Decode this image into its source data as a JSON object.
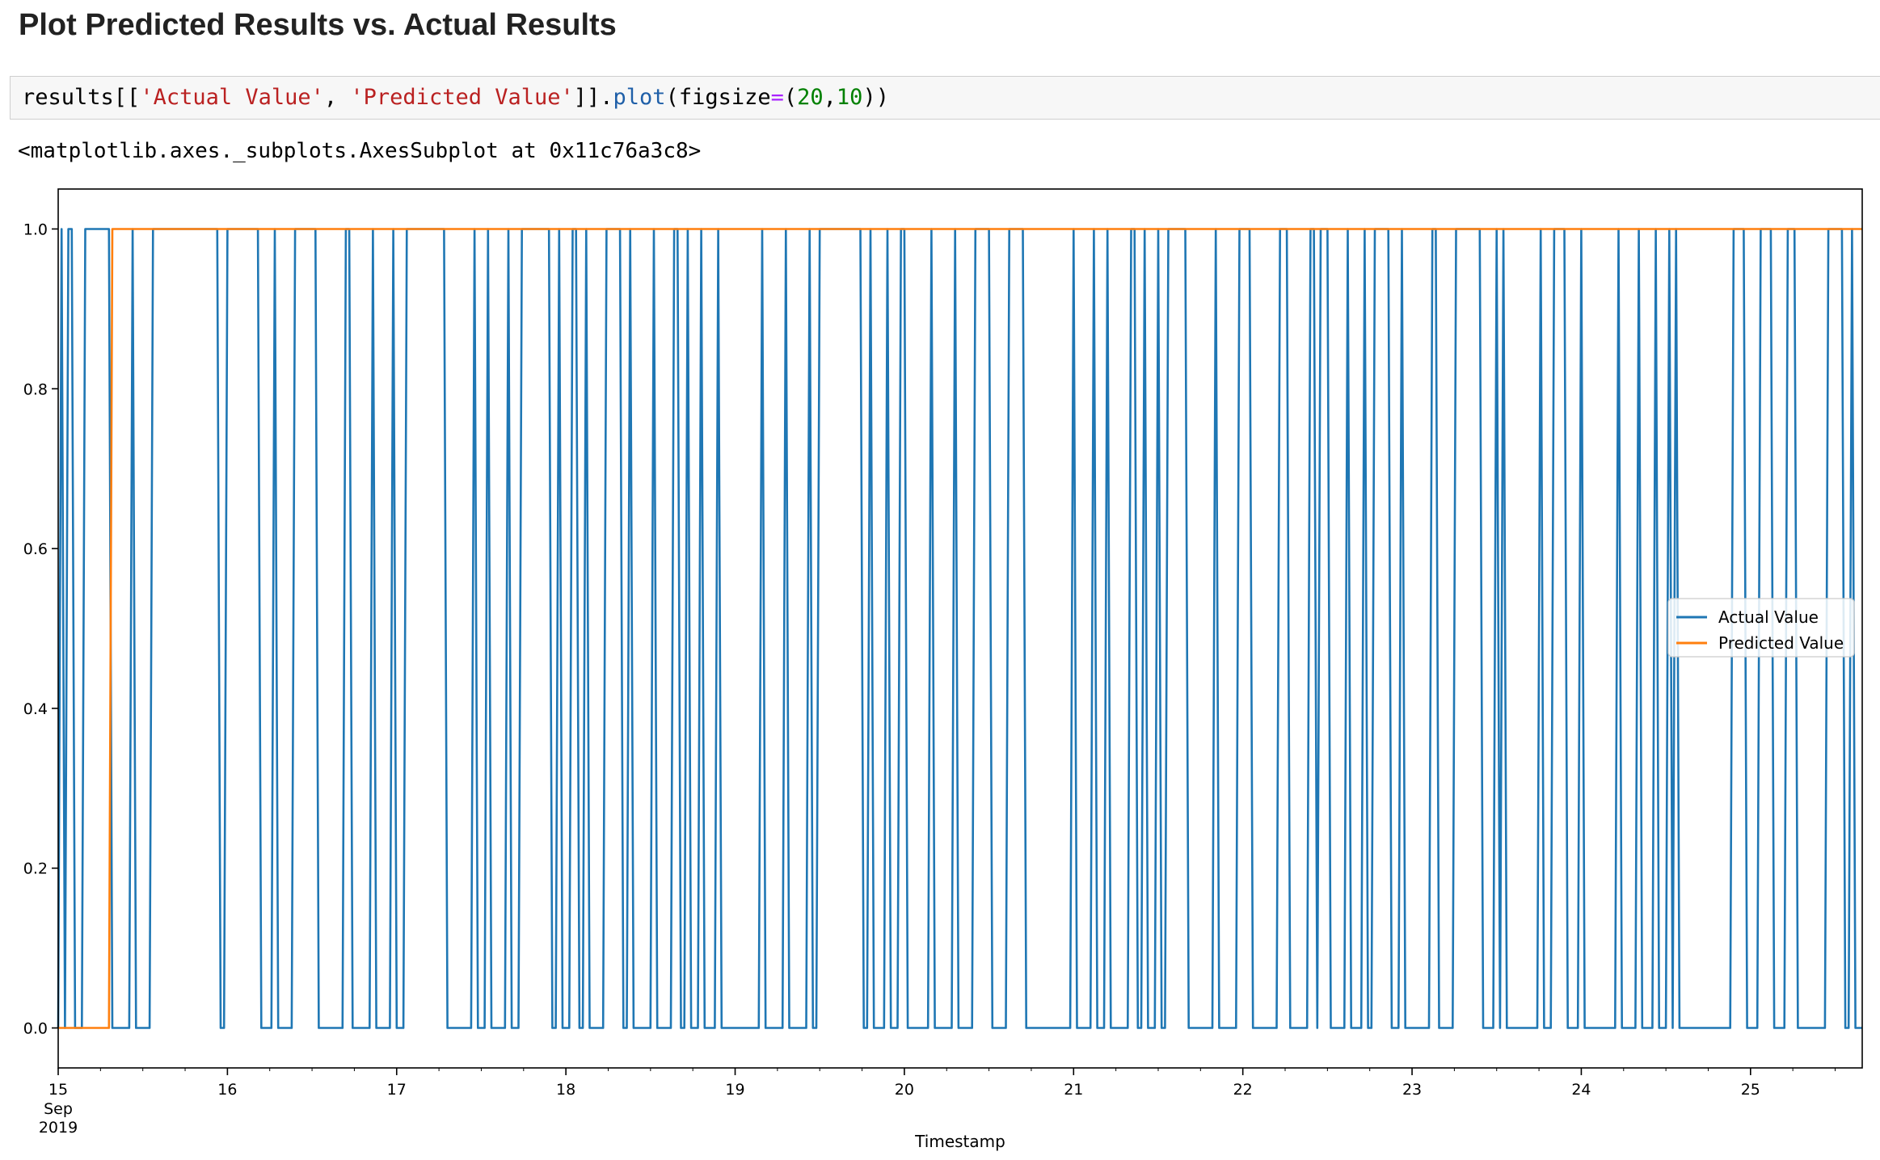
{
  "heading": "Plot Predicted Results vs. Actual Results",
  "code": {
    "prefix": "results[[",
    "str1": "'Actual Value'",
    "sep": ", ",
    "str2": "'Predicted Value'",
    "mid": "]].",
    "method": "plot",
    "open": "(figsize",
    "eq": "=",
    "paren": "(",
    "num1": "20",
    "comma": ",",
    "num2": "10",
    "close": "))"
  },
  "output_text": "<matplotlib.axes._subplots.AxesSubplot at 0x11c76a3c8>",
  "chart_data": {
    "type": "line",
    "title": "",
    "xlabel": "Timestamp",
    "ylabel": "",
    "xlim": [
      15.0,
      25.66
    ],
    "ylim": [
      -0.05,
      1.05
    ],
    "x_ticks": [
      {
        "value": 15,
        "label": "15",
        "sublabels": [
          "Sep",
          "2019"
        ]
      },
      {
        "value": 16,
        "label": "16"
      },
      {
        "value": 17,
        "label": "17"
      },
      {
        "value": 18,
        "label": "18"
      },
      {
        "value": 19,
        "label": "19"
      },
      {
        "value": 20,
        "label": "20"
      },
      {
        "value": 21,
        "label": "21"
      },
      {
        "value": 22,
        "label": "22"
      },
      {
        "value": 23,
        "label": "23"
      },
      {
        "value": 24,
        "label": "24"
      },
      {
        "value": 25,
        "label": "25"
      }
    ],
    "y_ticks": [
      {
        "value": 0.0,
        "label": "0.0"
      },
      {
        "value": 0.2,
        "label": "0.2"
      },
      {
        "value": 0.4,
        "label": "0.4"
      },
      {
        "value": 0.6,
        "label": "0.6"
      },
      {
        "value": 0.8,
        "label": "0.8"
      },
      {
        "value": 1.0,
        "label": "1.0"
      }
    ],
    "grid": false,
    "legend_position": "center-right",
    "series": [
      {
        "name": "Actual Value",
        "color": "#1f77b4",
        "x_start": 15.0,
        "x_step": 0.02,
        "values": [
          0,
          1,
          0,
          1,
          1,
          0,
          0,
          0,
          1,
          1,
          1,
          1,
          1,
          1,
          1,
          1,
          0,
          0,
          0,
          0,
          0,
          0,
          1,
          0,
          0,
          0,
          0,
          0,
          1,
          1,
          1,
          1,
          1,
          1,
          1,
          1,
          1,
          1,
          1,
          1,
          1,
          1,
          1,
          1,
          1,
          1,
          1,
          1,
          0,
          0,
          1,
          1,
          1,
          1,
          1,
          1,
          1,
          1,
          1,
          1,
          0,
          0,
          0,
          0,
          1,
          0,
          0,
          0,
          0,
          0,
          1,
          1,
          1,
          1,
          1,
          1,
          1,
          0,
          0,
          0,
          0,
          0,
          0,
          0,
          0,
          1,
          1,
          0,
          0,
          0,
          0,
          0,
          0,
          1,
          0,
          0,
          0,
          0,
          0,
          1,
          0,
          0,
          0,
          1,
          1,
          1,
          1,
          1,
          1,
          1,
          1,
          1,
          1,
          1,
          1,
          0,
          0,
          0,
          0,
          0,
          0,
          0,
          0,
          1,
          0,
          0,
          0,
          1,
          0,
          0,
          0,
          0,
          0,
          1,
          0,
          0,
          0,
          1,
          1,
          1,
          1,
          1,
          1,
          1,
          1,
          1,
          0,
          0,
          1,
          0,
          0,
          0,
          1,
          1,
          0,
          0,
          1,
          0,
          0,
          0,
          0,
          0,
          1,
          1,
          1,
          1,
          1,
          0,
          0,
          1,
          0,
          0,
          0,
          0,
          0,
          0,
          1,
          0,
          0,
          0,
          0,
          0,
          1,
          1,
          0,
          0,
          1,
          0,
          0,
          0,
          1,
          0,
          0,
          0,
          0,
          1,
          0,
          0,
          0,
          0,
          0,
          0,
          0,
          0,
          0,
          0,
          0,
          0,
          1,
          0,
          0,
          0,
          0,
          0,
          0,
          1,
          0,
          0,
          0,
          0,
          0,
          0,
          1,
          0,
          0,
          1,
          1,
          1,
          1,
          1,
          1,
          1,
          1,
          1,
          1,
          1,
          1,
          1,
          0,
          0,
          1,
          0,
          0,
          0,
          0,
          1,
          0,
          0,
          0,
          1,
          1,
          0,
          0,
          0,
          0,
          0,
          0,
          0,
          1,
          0,
          0,
          0,
          0,
          0,
          0,
          1,
          0,
          0,
          0,
          0,
          0,
          1,
          1,
          1,
          1,
          1,
          0,
          0,
          0,
          0,
          0,
          1,
          1,
          1,
          1,
          1,
          0,
          0,
          0,
          0,
          0,
          0,
          0,
          0,
          0,
          0,
          0,
          0,
          0,
          0,
          1,
          0,
          0,
          0,
          0,
          0,
          1,
          0,
          0,
          0,
          1,
          0,
          0,
          0,
          0,
          0,
          0,
          1,
          1,
          0,
          0,
          1,
          0,
          0,
          0,
          1,
          0,
          0,
          1,
          1,
          1,
          1,
          1,
          1,
          0,
          0,
          0,
          0,
          0,
          0,
          0,
          0,
          1,
          0,
          0,
          0,
          0,
          0,
          0,
          1,
          1,
          1,
          1,
          0,
          0,
          0,
          0,
          0,
          0,
          0,
          0,
          1,
          1,
          1,
          0,
          0,
          0,
          0,
          0,
          0,
          1,
          1,
          0,
          1,
          1,
          1,
          0,
          0,
          0,
          0,
          0,
          1,
          0,
          0,
          0,
          0,
          1,
          0,
          0,
          1,
          1,
          1,
          1,
          1,
          0,
          0,
          0,
          1,
          0,
          0,
          0,
          0,
          0,
          0,
          0,
          0,
          1,
          1,
          0,
          0,
          0,
          0,
          0,
          1,
          1,
          1,
          1,
          1,
          1,
          1,
          1,
          0,
          0,
          0,
          0,
          1,
          0,
          1,
          0,
          0,
          0,
          0,
          0,
          0,
          0,
          0,
          0,
          0,
          1,
          0,
          0,
          0,
          1,
          1,
          1,
          1,
          0,
          0,
          0,
          0,
          1,
          0,
          0,
          0,
          0,
          0,
          0,
          0,
          0,
          0,
          0,
          1,
          0,
          0,
          0,
          0,
          0,
          1,
          0,
          0,
          0,
          0,
          1,
          0,
          0,
          0,
          1,
          0,
          1,
          0,
          0,
          0,
          0,
          0,
          0,
          0,
          0,
          0,
          0,
          0,
          0,
          0,
          0,
          0,
          0,
          1,
          1,
          1,
          1,
          0,
          0,
          0,
          0,
          1,
          1,
          1,
          1,
          0,
          0,
          0,
          0,
          1,
          1,
          1,
          0,
          0,
          0,
          0,
          0,
          0,
          0,
          0,
          0,
          1,
          1,
          1,
          1,
          1,
          0,
          0,
          1,
          0,
          0,
          0,
          0,
          0,
          0,
          0,
          0,
          1,
          0,
          0,
          1,
          1,
          1,
          1,
          1,
          1,
          1,
          1,
          1,
          1,
          1,
          1,
          1
        ]
      },
      {
        "name": "Predicted Value",
        "color": "#ff7f0e",
        "x_start": 15.0,
        "x_step": 0.02,
        "values": [
          0,
          0,
          0,
          0,
          0,
          0,
          0,
          0,
          0,
          0,
          0,
          0,
          0,
          0,
          0,
          0,
          1,
          1,
          1,
          1,
          1,
          1,
          1,
          1,
          1,
          1,
          1,
          1,
          1,
          1,
          1,
          1,
          1,
          1,
          1,
          1,
          1,
          1,
          1,
          1,
          1,
          1,
          1,
          1,
          1,
          1,
          1,
          1,
          1,
          1,
          1,
          1,
          1,
          1,
          1,
          1,
          1,
          1,
          1,
          1,
          1,
          1,
          1,
          1,
          1,
          1,
          1,
          1,
          1,
          1,
          1,
          1,
          1,
          1,
          1,
          1,
          1,
          1,
          1,
          1,
          1,
          1,
          1,
          1,
          1,
          1,
          1,
          1,
          1,
          1,
          1,
          1,
          1,
          1,
          1,
          1,
          1,
          1,
          1,
          1,
          1,
          1,
          1,
          1,
          1,
          1,
          1,
          1,
          1,
          1,
          1,
          1,
          1,
          1,
          1,
          1,
          1,
          1,
          1,
          1,
          1,
          1,
          1,
          1,
          1,
          1,
          1,
          1,
          1,
          1,
          1,
          1,
          1,
          1,
          1,
          1,
          1,
          1,
          1,
          1,
          1,
          1,
          1,
          1,
          1,
          1,
          1,
          1,
          1,
          1,
          1,
          1,
          1,
          1,
          1,
          1,
          1,
          1,
          1,
          1,
          1,
          1,
          1,
          1,
          1,
          1,
          1,
          1,
          1,
          1,
          1,
          1,
          1,
          1,
          1,
          1,
          1,
          1,
          1,
          1,
          1,
          1,
          1,
          1,
          1,
          1,
          1,
          1,
          1,
          1,
          1,
          1,
          1,
          1,
          1,
          1,
          1,
          1,
          1,
          1,
          1,
          1,
          1,
          1,
          1,
          1,
          1,
          1,
          1,
          1,
          1,
          1,
          1,
          1,
          1,
          1,
          1,
          1,
          1,
          1,
          1,
          1,
          1,
          1,
          1,
          1,
          1,
          1,
          1,
          1,
          1,
          1,
          1,
          1,
          1,
          1,
          1,
          1,
          1,
          1,
          1,
          1,
          1,
          1,
          1,
          1,
          1,
          1,
          1,
          1,
          1,
          1,
          1,
          1,
          1,
          1,
          1,
          1,
          1,
          1,
          1,
          1,
          1,
          1,
          1,
          1,
          1,
          1,
          1,
          1,
          1,
          1,
          1,
          1,
          1,
          1,
          1,
          1,
          1,
          1,
          1,
          1,
          1,
          1,
          1,
          1,
          1,
          1,
          1,
          1,
          1,
          1,
          1,
          1,
          1,
          1,
          1,
          1,
          1,
          1,
          1,
          1,
          1,
          1,
          1,
          1,
          1,
          1,
          1,
          1,
          1,
          1,
          1,
          1,
          1,
          1,
          1,
          1,
          1,
          1,
          1,
          1,
          1,
          1,
          1,
          1,
          1,
          1,
          1,
          1,
          1,
          1,
          1,
          1,
          1,
          1,
          1,
          1,
          1,
          1,
          1,
          1,
          1,
          1,
          1,
          1,
          1,
          1,
          1,
          1,
          1,
          1,
          1,
          1,
          1,
          1,
          1,
          1,
          1,
          1,
          1,
          1,
          1,
          1,
          1,
          1,
          1,
          1,
          1,
          1,
          1,
          1,
          1,
          1,
          1,
          1,
          1,
          1,
          1,
          1,
          1,
          1,
          1,
          1,
          1,
          1,
          1,
          1,
          1,
          1,
          1,
          1,
          1,
          1,
          1,
          1,
          1,
          1,
          1,
          1,
          1,
          1,
          1,
          1,
          1,
          1,
          1,
          1,
          1,
          1,
          1,
          1,
          1,
          1,
          1,
          1,
          1,
          1,
          1,
          1,
          1,
          1,
          1,
          1,
          1,
          1,
          1,
          1,
          1,
          1,
          1,
          1,
          1,
          1,
          1,
          1,
          1,
          1,
          1,
          1,
          1,
          1,
          1,
          1,
          1,
          1,
          1,
          1,
          1,
          1,
          1,
          1,
          1,
          1,
          1,
          1,
          1,
          1,
          1,
          1,
          1,
          1,
          1,
          1,
          1,
          1,
          1,
          1,
          1,
          1,
          1,
          1,
          1,
          1,
          1,
          1,
          1,
          1,
          1,
          1,
          1,
          1,
          1,
          1,
          1,
          1,
          1,
          1,
          1,
          1,
          1,
          1,
          1,
          1,
          1,
          1,
          1,
          1,
          1,
          1,
          1,
          1,
          1,
          1,
          1,
          1,
          1,
          1,
          1,
          1,
          1,
          1,
          1,
          1,
          1,
          1,
          1,
          1,
          1,
          1,
          1,
          1,
          1,
          1,
          1,
          1,
          1,
          1,
          1,
          1,
          1,
          1,
          1,
          1,
          1,
          1,
          1,
          1,
          1,
          1,
          1,
          1,
          1
        ]
      }
    ]
  }
}
